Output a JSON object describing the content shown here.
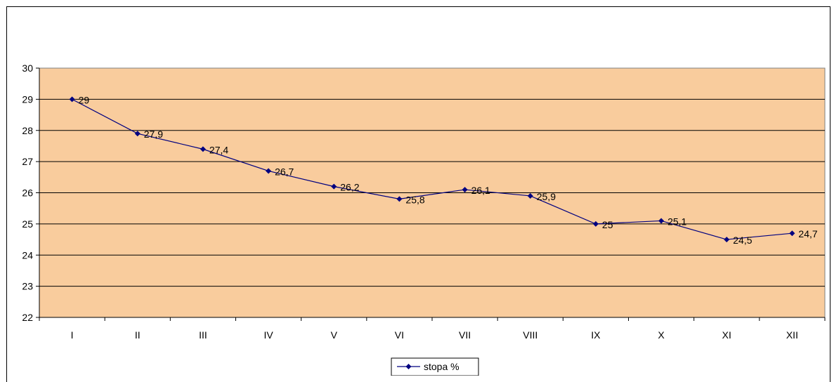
{
  "chart_data": {
    "type": "line",
    "title": "",
    "xlabel": "",
    "ylabel": "",
    "categories": [
      "I",
      "II",
      "III",
      "IV",
      "V",
      "VI",
      "VII",
      "VIII",
      "IX",
      "X",
      "XI",
      "XII"
    ],
    "ylim": [
      22,
      30
    ],
    "yticks": [
      "22",
      "23",
      "24",
      "25",
      "26",
      "27",
      "28",
      "29",
      "30"
    ],
    "grid": true,
    "legend_position": "bottom",
    "series": [
      {
        "name": "stopa %",
        "values": [
          29,
          27.9,
          27.4,
          26.7,
          26.2,
          25.8,
          26.1,
          25.9,
          25,
          25.1,
          24.5,
          24.7
        ],
        "labels": [
          "29",
          "27,9",
          "27,4",
          "26,7",
          "26,2",
          "25,8",
          "26,1",
          "25,9",
          "25",
          "25,1",
          "24,5",
          "24,7"
        ],
        "color": "#000080",
        "marker": "diamond"
      }
    ],
    "plot_background": "#F9CC9D"
  }
}
